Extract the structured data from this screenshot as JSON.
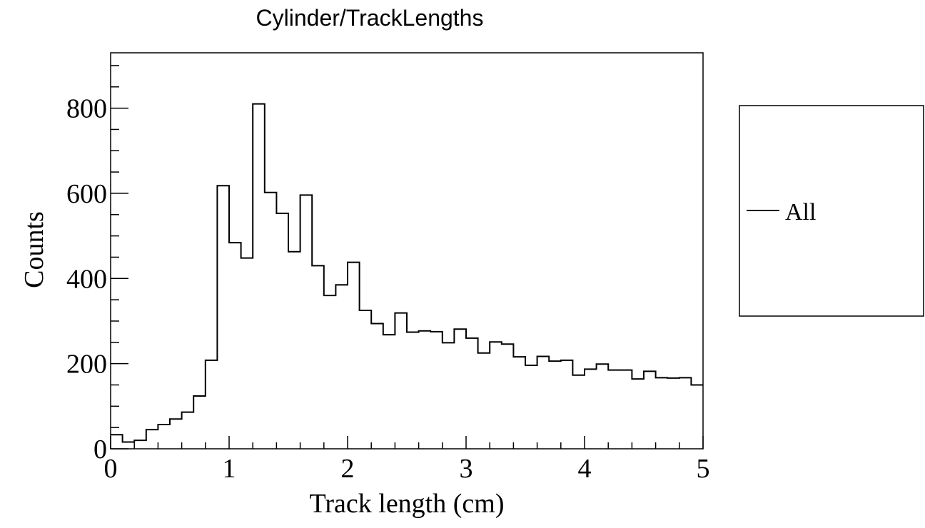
{
  "chart_data": {
    "type": "bar",
    "title": "Cylinder/TrackLengths",
    "xlabel": "Track length (cm)",
    "ylabel": "Counts",
    "xlim": [
      0,
      5
    ],
    "ylim": [
      0,
      930
    ],
    "x_ticks": [
      0,
      1,
      2,
      3,
      4,
      5
    ],
    "y_ticks": [
      0,
      200,
      400,
      600,
      800
    ],
    "grid": false,
    "legend_position": "right",
    "bin_width": 0.1,
    "series": [
      {
        "name": "All",
        "color": "#000000",
        "bin_edges": [
          0,
          0.1,
          0.2,
          0.3,
          0.4,
          0.5,
          0.6,
          0.7,
          0.8,
          0.9,
          1.0,
          1.1,
          1.2,
          1.3,
          1.4,
          1.5,
          1.6,
          1.7,
          1.8,
          1.9,
          2.0,
          2.1,
          2.2,
          2.3,
          2.4,
          2.5,
          2.6,
          2.7,
          2.8,
          2.9,
          3.0,
          3.1,
          3.2,
          3.3,
          3.4,
          3.5,
          3.6,
          3.7,
          3.8,
          3.9,
          4.0,
          4.1,
          4.2,
          4.3,
          4.4,
          4.5,
          4.6,
          4.7,
          4.8,
          4.9,
          5.0
        ],
        "values": [
          33,
          16,
          20,
          45,
          57,
          70,
          86,
          124,
          208,
          618,
          484,
          448,
          810,
          602,
          553,
          463,
          596,
          430,
          360,
          385,
          438,
          325,
          294,
          268,
          319,
          274,
          277,
          275,
          249,
          281,
          260,
          225,
          251,
          246,
          216,
          196,
          217,
          206,
          208,
          173,
          187,
          199,
          185,
          185,
          164,
          182,
          167,
          166,
          167,
          150
        ]
      }
    ]
  }
}
